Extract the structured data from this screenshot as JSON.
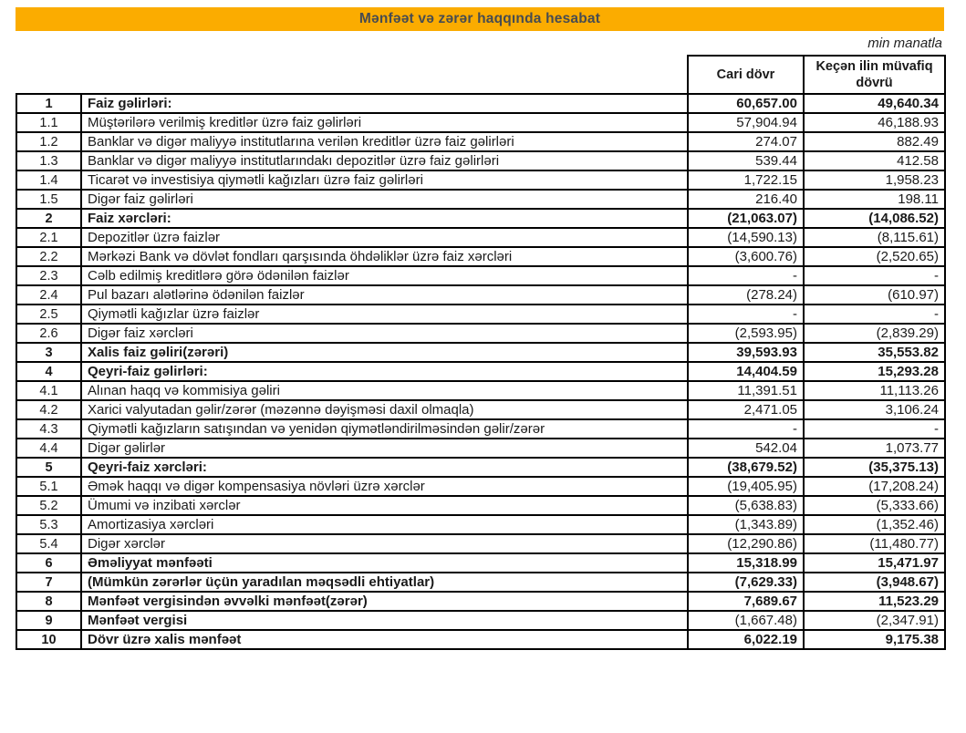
{
  "title": "Mənfəət və zərər haqqında hesabat",
  "unit_note": "min manatla",
  "colors": {
    "title_bg": "#FBAC00",
    "title_text": "#474C51",
    "border": "#000000"
  },
  "table": {
    "columns": [
      "Cari dövr",
      "Keçən ilin müvafiq dövrü"
    ],
    "rows": [
      {
        "num": "1",
        "label": "Faiz gəlirləri:",
        "current": "60,657.00",
        "previous": "49,640.34",
        "bold": true,
        "values_bold": true
      },
      {
        "num": "1.1",
        "label": "Müştərilərə verilmiş kreditlər üzrə faiz gəlirləri",
        "current": "57,904.94",
        "previous": "46,188.93",
        "bold": false,
        "values_bold": false
      },
      {
        "num": "1.2",
        "label": "Banklar və digər maliyyə institutlarına verilən kreditlər üzrə faiz gəlirləri",
        "current": "274.07",
        "previous": "882.49",
        "bold": false,
        "values_bold": false
      },
      {
        "num": "1.3",
        "label": "Banklar və digər maliyyə institutlarındakı depozitlər üzrə faiz gəlirləri",
        "current": "539.44",
        "previous": "412.58",
        "bold": false,
        "values_bold": false
      },
      {
        "num": "1.4",
        "label": "Ticarət və investisiya qiymətli kağızları üzrə faiz gəlirləri",
        "current": "1,722.15",
        "previous": "1,958.23",
        "bold": false,
        "values_bold": false
      },
      {
        "num": "1.5",
        "label": "Digər faiz gəlirləri",
        "current": "216.40",
        "previous": "198.11",
        "bold": false,
        "values_bold": false
      },
      {
        "num": "2",
        "label": "Faiz xərcləri:",
        "current": "(21,063.07)",
        "previous": "(14,086.52)",
        "bold": true,
        "values_bold": true
      },
      {
        "num": "2.1",
        "label": "Depozitlər üzrə faizlər",
        "current": "(14,590.13)",
        "previous": "(8,115.61)",
        "bold": false,
        "values_bold": false
      },
      {
        "num": "2.2",
        "label": "Mərkəzi Bank və dövlət fondları qarşısında öhdəliklər üzrə faiz xərcləri",
        "current": "(3,600.76)",
        "previous": "(2,520.65)",
        "bold": false,
        "values_bold": false
      },
      {
        "num": "2.3",
        "label": "Cəlb edilmiş kreditlərə görə ödənilən faizlər",
        "current": "-",
        "previous": "-",
        "bold": false,
        "values_bold": false
      },
      {
        "num": "2.4",
        "label": "Pul bazarı alətlərinə ödənilən faizlər",
        "current": "(278.24)",
        "previous": "(610.97)",
        "bold": false,
        "values_bold": false
      },
      {
        "num": "2.5",
        "label": "Qiymətli kağızlar üzrə faizlər",
        "current": "-",
        "previous": "-",
        "bold": false,
        "values_bold": false
      },
      {
        "num": "2.6",
        "label": "Digər faiz xərcləri",
        "current": "(2,593.95)",
        "previous": "(2,839.29)",
        "bold": false,
        "values_bold": false
      },
      {
        "num": "3",
        "label": "Xalis faiz gəliri(zərəri)",
        "current": "39,593.93",
        "previous": "35,553.82",
        "bold": true,
        "values_bold": true
      },
      {
        "num": "4",
        "label": "Qeyri-faiz gəlirləri:",
        "current": "14,404.59",
        "previous": "15,293.28",
        "bold": true,
        "values_bold": true
      },
      {
        "num": "4.1",
        "label": "Alınan haqq və kommisiya gəliri",
        "current": "11,391.51",
        "previous": "11,113.26",
        "bold": false,
        "values_bold": false
      },
      {
        "num": "4.2",
        "label": "Xarici valyutadan gəlir/zərər (məzənnə dəyişməsi daxil olmaqla)",
        "current": "2,471.05",
        "previous": "3,106.24",
        "bold": false,
        "values_bold": false
      },
      {
        "num": "4.3",
        "label": "Qiymətli kağızların satışından və yenidən qiymətləndirilməsindən gəlir/zərər",
        "current": "-",
        "previous": "-",
        "bold": false,
        "values_bold": false
      },
      {
        "num": "4.4",
        "label": "Digər gəlirlər",
        "current": "542.04",
        "previous": "1,073.77",
        "bold": false,
        "values_bold": false
      },
      {
        "num": "5",
        "label": "Qeyri-faiz xərcləri:",
        "current": "(38,679.52)",
        "previous": "(35,375.13)",
        "bold": true,
        "values_bold": true
      },
      {
        "num": "5.1",
        "label": "Əmək haqqı və digər kompensasiya növləri üzrə xərclər",
        "current": "(19,405.95)",
        "previous": "(17,208.24)",
        "bold": false,
        "values_bold": false
      },
      {
        "num": "5.2",
        "label": "Ümumi və inzibati xərclər",
        "current": "(5,638.83)",
        "previous": "(5,333.66)",
        "bold": false,
        "values_bold": false
      },
      {
        "num": "5.3",
        "label": "Amortizasiya xərcləri",
        "current": "(1,343.89)",
        "previous": "(1,352.46)",
        "bold": false,
        "values_bold": false
      },
      {
        "num": "5.4",
        "label": "Digər xərclər",
        "current": "(12,290.86)",
        "previous": "(11,480.77)",
        "bold": false,
        "values_bold": false
      },
      {
        "num": "6",
        "label": "Əməliyyat mənfəəti",
        "current": "15,318.99",
        "previous": "15,471.97",
        "bold": true,
        "values_bold": true
      },
      {
        "num": "7",
        "label": "(Mümkün zərərlər üçün yaradılan məqsədli ehtiyatlar)",
        "current": "(7,629.33)",
        "previous": "(3,948.67)",
        "bold": true,
        "values_bold": true
      },
      {
        "num": "8",
        "label": "Mənfəət vergisindən əvvəlki mənfəət(zərər)",
        "current": "7,689.67",
        "previous": "11,523.29",
        "bold": true,
        "values_bold": true
      },
      {
        "num": "9",
        "label": "Mənfəət vergisi",
        "current": "(1,667.48)",
        "previous": "(2,347.91)",
        "bold": true,
        "values_bold": false
      },
      {
        "num": "10",
        "label": "Dövr üzrə xalis mənfəət",
        "current": "6,022.19",
        "previous": "9,175.38",
        "bold": true,
        "values_bold": true
      }
    ]
  }
}
